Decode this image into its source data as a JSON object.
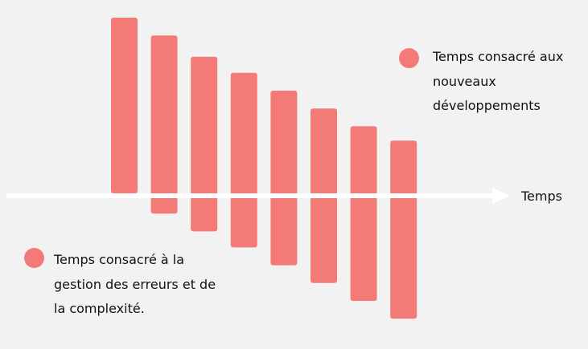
{
  "colors": {
    "background": "#f2f2f2",
    "bar": "#f47a78",
    "axis": "#ffffff",
    "text": "#111111"
  },
  "legend": {
    "new_development": {
      "label": "Temps consacré aux nouveaux développements"
    },
    "error_management": {
      "label": "Temps consacré à la gestion des erreurs et de la complexité."
    }
  },
  "axis": {
    "label": "Temps"
  },
  "bars": [
    {
      "above": 1.0,
      "below": 0.0
    },
    {
      "above": 0.9,
      "below": 0.1
    },
    {
      "above": 0.78,
      "below": 0.2
    },
    {
      "above": 0.69,
      "below": 0.29
    },
    {
      "above": 0.59,
      "below": 0.39
    },
    {
      "above": 0.49,
      "below": 0.49
    },
    {
      "above": 0.39,
      "below": 0.59
    },
    {
      "above": 0.31,
      "below": 0.69
    }
  ]
}
